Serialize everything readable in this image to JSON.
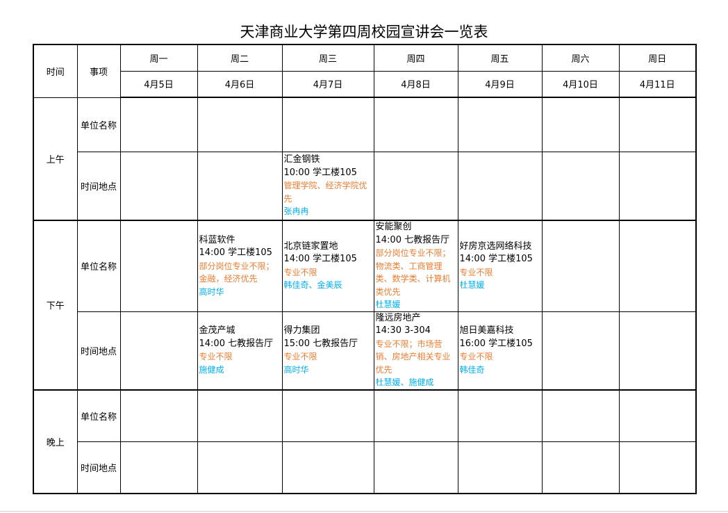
{
  "title": "天津商业大学第四周校园宣讲会一览表",
  "header": {
    "time": "时间",
    "item": "事项"
  },
  "days": [
    "周一",
    "周二",
    "周三",
    "周四",
    "周五",
    "周六",
    "周日"
  ],
  "dates": [
    "4月5日",
    "4月6日",
    "4月7日",
    "4月8日",
    "4月9日",
    "4月10日",
    "4月11日"
  ],
  "colors": {
    "note": "#ed7d31",
    "contact": "#00b0f0"
  },
  "periods": [
    {
      "label": "上午",
      "rows": [
        {
          "label": "单位名称",
          "cells": [
            null,
            null,
            null,
            null,
            null,
            null,
            null
          ]
        },
        {
          "label": "时间地点",
          "cells": [
            null,
            null,
            {
              "name": "汇金钢铁",
              "detail": "10:00 学工楼105",
              "note": "管理学院、经济学院优先",
              "contact": "张冉冉"
            },
            null,
            null,
            null,
            null
          ]
        }
      ]
    },
    {
      "label": "下午",
      "rows": [
        {
          "label": "单位名称",
          "cells": [
            null,
            {
              "name": "科蓝软件",
              "detail": "14:00  学工楼105",
              "note": "部分岗位专业不限；金融，经济优先",
              "contact": "高时华"
            },
            {
              "name": "北京链家置地",
              "detail": "14:00  学工楼105",
              "note": "专业不限",
              "contact": "韩佳奇、金美辰"
            },
            {
              "name": "安能聚创",
              "detail": "14:00  七教报告厅",
              "note": "部分岗位专业不限；物流类、工商管理类、数学类、计算机类优先",
              "contact": "杜慧媛"
            },
            {
              "name": "好房京选网络科技",
              "detail": "14:00  学工楼105",
              "note": "专业不限",
              "contact": "杜慧媛"
            },
            null,
            null
          ]
        },
        {
          "label": "时间地点",
          "cells": [
            null,
            {
              "name": "金茂产城",
              "detail": "14:00  七教报告厅",
              "note": "专业不限",
              "contact": "施健成"
            },
            {
              "name": "得力集团",
              "detail": "15:00  七教报告厅",
              "note": "专业不限",
              "contact": "高时华"
            },
            {
              "name": "隆远房地产",
              "detail": "14:30  3-304",
              "note": "专业不限；市场营销、房地产相关专业优先",
              "contact": "杜慧媛、施健成"
            },
            {
              "name": "旭日美嘉科技",
              "detail": "16:00  学工楼105",
              "note": "专业不限",
              "contact": "韩佳奇"
            },
            null,
            null
          ]
        }
      ]
    },
    {
      "label": "晚上",
      "rows": [
        {
          "label": "单位名称",
          "cells": [
            null,
            null,
            null,
            null,
            null,
            null,
            null
          ]
        },
        {
          "label": "时间地点",
          "cells": [
            null,
            null,
            null,
            null,
            null,
            null,
            null
          ]
        }
      ]
    }
  ]
}
